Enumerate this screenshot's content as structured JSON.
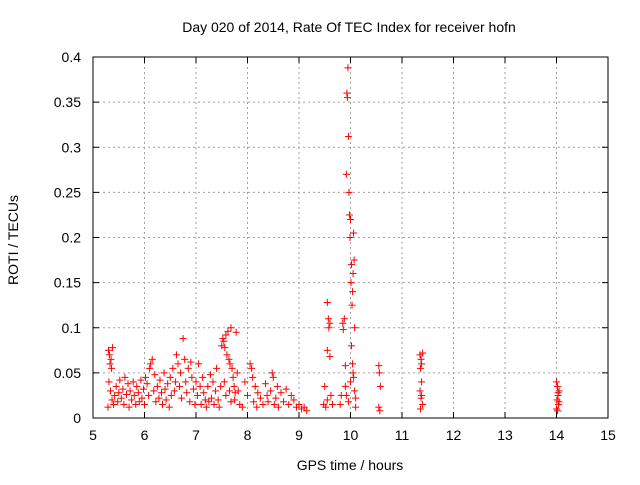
{
  "chart_data": {
    "type": "scatter",
    "title": "Day 020 of 2014, Rate Of TEC Index for receiver hofn",
    "xlabel": "GPS time / hours",
    "ylabel": "ROTI / TECUs",
    "xlim": [
      5,
      15
    ],
    "ylim": [
      0,
      0.4
    ],
    "x_ticks": [
      "5",
      "6",
      "7",
      "8",
      "9",
      "10",
      "11",
      "12",
      "13",
      "14",
      "15"
    ],
    "y_ticks": [
      "0",
      "0.05",
      "0.1",
      "0.15",
      "0.2",
      "0.25",
      "0.3",
      "0.35",
      "0.4"
    ],
    "x_tick_values": [
      5,
      6,
      7,
      8,
      9,
      10,
      11,
      12,
      13,
      14,
      15
    ],
    "y_tick_values": [
      0,
      0.05,
      0.1,
      0.15,
      0.2,
      0.25,
      0.3,
      0.35,
      0.4
    ],
    "grid": true,
    "marker": "+",
    "color": "#ff0000",
    "series": [
      {
        "name": "ROTI",
        "points": [
          [
            5.3,
            0.075
          ],
          [
            5.32,
            0.07
          ],
          [
            5.35,
            0.065
          ],
          [
            5.33,
            0.06
          ],
          [
            5.38,
            0.078
          ],
          [
            5.36,
            0.055
          ],
          [
            5.31,
            0.04
          ],
          [
            5.34,
            0.03
          ],
          [
            5.37,
            0.02
          ],
          [
            5.4,
            0.015
          ],
          [
            5.29,
            0.012
          ],
          [
            5.42,
            0.025
          ],
          [
            5.45,
            0.035
          ],
          [
            5.48,
            0.018
          ],
          [
            5.5,
            0.028
          ],
          [
            5.52,
            0.042
          ],
          [
            5.55,
            0.022
          ],
          [
            5.58,
            0.032
          ],
          [
            5.6,
            0.015
          ],
          [
            5.62,
            0.045
          ],
          [
            5.65,
            0.026
          ],
          [
            5.68,
            0.038
          ],
          [
            5.7,
            0.012
          ],
          [
            5.72,
            0.03
          ],
          [
            5.75,
            0.02
          ],
          [
            5.78,
            0.04
          ],
          [
            5.8,
            0.025
          ],
          [
            5.83,
            0.015
          ],
          [
            5.85,
            0.035
          ],
          [
            5.88,
            0.028
          ],
          [
            5.9,
            0.018
          ],
          [
            5.93,
            0.042
          ],
          [
            5.95,
            0.022
          ],
          [
            5.98,
            0.032
          ],
          [
            6.0,
            0.015
          ],
          [
            6.02,
            0.045
          ],
          [
            6.05,
            0.038
          ],
          [
            6.08,
            0.025
          ],
          [
            6.1,
            0.055
          ],
          [
            6.12,
            0.06
          ],
          [
            6.15,
            0.065
          ],
          [
            6.18,
            0.03
          ],
          [
            6.2,
            0.048
          ],
          [
            6.22,
            0.018
          ],
          [
            6.25,
            0.035
          ],
          [
            6.28,
            0.022
          ],
          [
            6.3,
            0.042
          ],
          [
            6.33,
            0.028
          ],
          [
            6.35,
            0.015
          ],
          [
            6.38,
            0.05
          ],
          [
            6.4,
            0.032
          ],
          [
            6.42,
            0.02
          ],
          [
            6.45,
            0.038
          ],
          [
            6.48,
            0.012
          ],
          [
            6.5,
            0.045
          ],
          [
            6.52,
            0.025
          ],
          [
            6.55,
            0.055
          ],
          [
            6.58,
            0.03
          ],
          [
            6.6,
            0.04
          ],
          [
            6.62,
            0.07
          ],
          [
            6.65,
            0.06
          ],
          [
            6.68,
            0.035
          ],
          [
            6.7,
            0.05
          ],
          [
            6.72,
            0.022
          ],
          [
            6.75,
            0.088
          ],
          [
            6.78,
            0.065
          ],
          [
            6.8,
            0.04
          ],
          [
            6.82,
            0.028
          ],
          [
            6.85,
            0.055
          ],
          [
            6.88,
            0.018
          ],
          [
            6.9,
            0.062
          ],
          [
            6.92,
            0.045
          ],
          [
            6.95,
            0.032
          ],
          [
            6.98,
            0.015
          ],
          [
            7.0,
            0.04
          ],
          [
            7.03,
            0.025
          ],
          [
            7.05,
            0.06
          ],
          [
            7.08,
            0.035
          ],
          [
            7.1,
            0.015
          ],
          [
            7.13,
            0.045
          ],
          [
            7.15,
            0.028
          ],
          [
            7.18,
            0.02
          ],
          [
            7.2,
            0.012
          ],
          [
            7.23,
            0.035
          ],
          [
            7.25,
            0.018
          ],
          [
            7.28,
            0.048
          ],
          [
            7.3,
            0.022
          ],
          [
            7.33,
            0.04
          ],
          [
            7.35,
            0.015
          ],
          [
            7.38,
            0.03
          ],
          [
            7.4,
            0.055
          ],
          [
            7.43,
            0.02
          ],
          [
            7.45,
            0.012
          ],
          [
            7.48,
            0.035
          ],
          [
            7.5,
            0.08
          ],
          [
            7.52,
            0.088
          ],
          [
            7.54,
            0.085
          ],
          [
            7.56,
            0.078
          ],
          [
            7.58,
            0.092
          ],
          [
            7.6,
            0.07
          ],
          [
            7.62,
            0.096
          ],
          [
            7.64,
            0.065
          ],
          [
            7.66,
            0.06
          ],
          [
            7.68,
            0.1
          ],
          [
            7.7,
            0.055
          ],
          [
            7.72,
            0.045
          ],
          [
            7.74,
            0.035
          ],
          [
            7.76,
            0.028
          ],
          [
            7.78,
            0.095
          ],
          [
            7.8,
            0.05
          ],
          [
            7.55,
            0.04
          ],
          [
            7.65,
            0.03
          ],
          [
            7.75,
            0.02
          ],
          [
            7.85,
            0.015
          ],
          [
            7.58,
            0.025
          ],
          [
            7.68,
            0.018
          ],
          [
            7.82,
            0.03
          ],
          [
            7.9,
            0.012
          ],
          [
            7.95,
            0.04
          ],
          [
            8.0,
            0.025
          ],
          [
            8.05,
            0.06
          ],
          [
            8.08,
            0.055
          ],
          [
            8.1,
            0.045
          ],
          [
            8.12,
            0.018
          ],
          [
            8.15,
            0.035
          ],
          [
            8.18,
            0.012
          ],
          [
            8.2,
            0.028
          ],
          [
            8.25,
            0.022
          ],
          [
            8.3,
            0.015
          ],
          [
            8.35,
            0.038
          ],
          [
            8.38,
            0.025
          ],
          [
            8.4,
            0.018
          ],
          [
            8.45,
            0.03
          ],
          [
            8.48,
            0.05
          ],
          [
            8.5,
            0.045
          ],
          [
            8.52,
            0.015
          ],
          [
            8.55,
            0.022
          ],
          [
            8.58,
            0.035
          ],
          [
            8.6,
            0.012
          ],
          [
            8.65,
            0.028
          ],
          [
            8.7,
            0.018
          ],
          [
            8.75,
            0.032
          ],
          [
            8.8,
            0.015
          ],
          [
            8.85,
            0.025
          ],
          [
            8.9,
            0.02
          ],
          [
            8.95,
            0.012
          ],
          [
            9.0,
            0.015
          ],
          [
            9.05,
            0.01
          ],
          [
            9.1,
            0.012
          ],
          [
            9.15,
            0.008
          ],
          [
            9.48,
            0.015
          ],
          [
            9.5,
            0.035
          ],
          [
            9.52,
            0.012
          ],
          [
            9.55,
            0.02
          ],
          [
            9.55,
            0.128
          ],
          [
            9.57,
            0.11
          ],
          [
            9.58,
            0.1
          ],
          [
            9.6,
            0.105
          ],
          [
            9.62,
            0.025
          ],
          [
            9.65,
            0.015
          ],
          [
            9.55,
            0.075
          ],
          [
            9.6,
            0.068
          ],
          [
            9.8,
            0.015
          ],
          [
            9.82,
            0.025
          ],
          [
            9.85,
            0.105
          ],
          [
            9.86,
            0.098
          ],
          [
            9.88,
            0.11
          ],
          [
            9.9,
            0.058
          ],
          [
            9.9,
            0.035
          ],
          [
            9.92,
            0.27
          ],
          [
            9.93,
            0.36
          ],
          [
            9.94,
            0.355
          ],
          [
            9.95,
            0.388
          ],
          [
            9.96,
            0.312
          ],
          [
            9.97,
            0.25
          ],
          [
            9.98,
            0.225
          ],
          [
            9.99,
            0.2
          ],
          [
            10.0,
            0.22
          ],
          [
            10.01,
            0.15
          ],
          [
            10.02,
            0.17
          ],
          [
            10.03,
            0.125
          ],
          [
            10.04,
            0.14
          ],
          [
            10.05,
            0.16
          ],
          [
            10.06,
            0.205
          ],
          [
            10.07,
            0.175
          ],
          [
            10.08,
            0.1
          ],
          [
            10.02,
            0.08
          ],
          [
            10.04,
            0.06
          ],
          [
            10.06,
            0.045
          ],
          [
            10.08,
            0.03
          ],
          [
            10.1,
            0.012
          ],
          [
            9.92,
            0.025
          ],
          [
            9.96,
            0.018
          ],
          [
            10.0,
            0.04
          ],
          [
            10.05,
            0.05
          ],
          [
            10.1,
            0.022
          ],
          [
            10.55,
            0.058
          ],
          [
            10.56,
            0.05
          ],
          [
            10.58,
            0.035
          ],
          [
            10.55,
            0.012
          ],
          [
            10.57,
            0.008
          ],
          [
            11.35,
            0.07
          ],
          [
            11.37,
            0.065
          ],
          [
            11.38,
            0.06
          ],
          [
            11.4,
            0.072
          ],
          [
            11.36,
            0.055
          ],
          [
            11.38,
            0.04
          ],
          [
            11.35,
            0.03
          ],
          [
            11.37,
            0.022
          ],
          [
            11.4,
            0.015
          ],
          [
            11.36,
            0.01
          ],
          [
            11.38,
            0.025
          ],
          [
            14.0,
            0.04
          ],
          [
            14.02,
            0.035
          ],
          [
            14.05,
            0.03
          ],
          [
            14.03,
            0.025
          ],
          [
            14.01,
            0.02
          ],
          [
            14.04,
            0.015
          ],
          [
            14.0,
            0.01
          ],
          [
            14.02,
            0.008
          ],
          [
            14.05,
            0.018
          ],
          [
            14.03,
            0.028
          ]
        ]
      }
    ]
  }
}
